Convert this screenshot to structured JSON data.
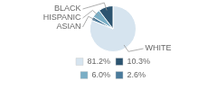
{
  "chart_data": {
    "type": "pie",
    "categories": [
      "WHITE",
      "ASIAN",
      "HISPANIC",
      "BLACK"
    ],
    "values": [
      81.2,
      2.6,
      6.0,
      10.3
    ],
    "value_labels": [
      "81.2%",
      "2.6%",
      "6.0%",
      "10.3%"
    ],
    "colors": [
      "#d6e4ef",
      "#4a7a9b",
      "#7aaec5",
      "#2c5470"
    ],
    "legend": "bottom"
  }
}
